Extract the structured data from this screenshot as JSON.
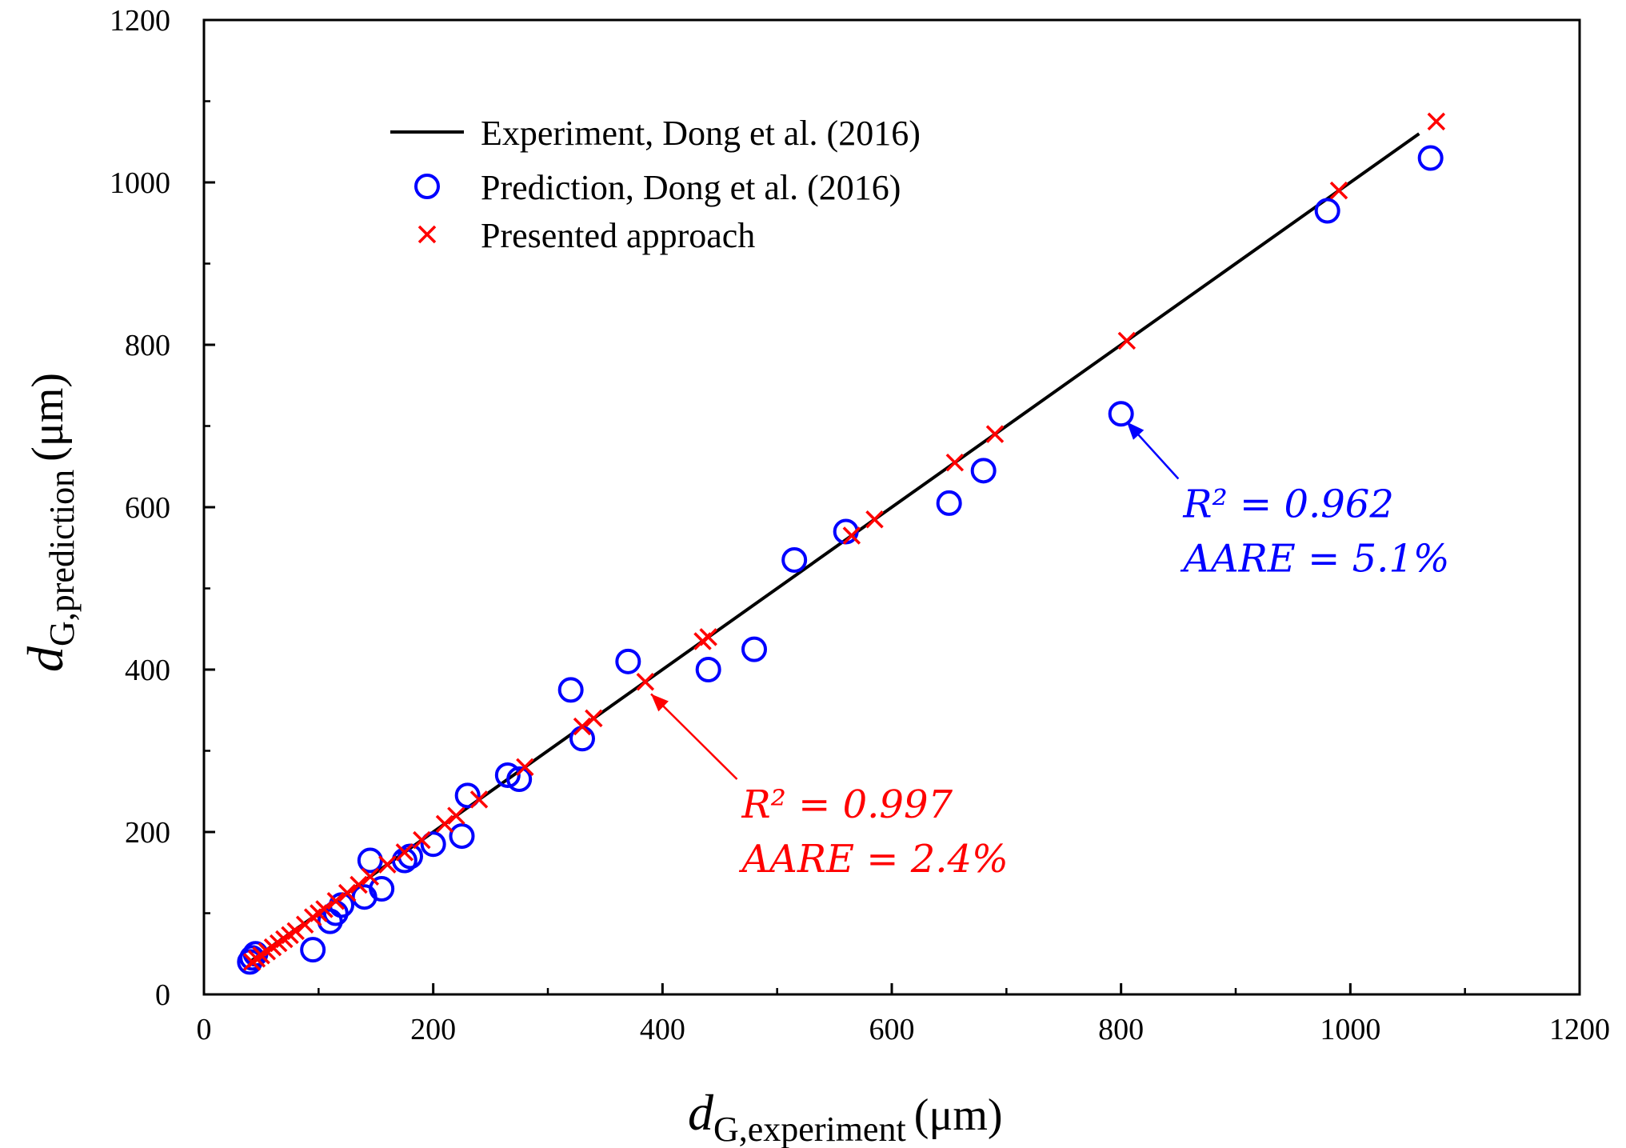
{
  "chart_data": {
    "type": "scatter",
    "title": "",
    "xlabel": {
      "main": "d",
      "sub": "G,experiment",
      "unit": "(μm)"
    },
    "ylabel": {
      "main": "d",
      "sub": "G,prediction",
      "unit": "(μm)"
    },
    "xlim": [
      0,
      1200
    ],
    "ylim": [
      0,
      1200
    ],
    "xticks": [
      0,
      200,
      400,
      600,
      800,
      1000,
      1200
    ],
    "yticks": [
      0,
      200,
      400,
      600,
      800,
      1000,
      1200
    ],
    "legend_position": "top-left",
    "series": [
      {
        "name": "Experiment,  Dong et al. (2016)",
        "kind": "line",
        "color": "#000000",
        "x": [
          40,
          1060
        ],
        "y": [
          40,
          1060
        ]
      },
      {
        "name": "Prediction, Dong et al. (2016)",
        "kind": "open-circle",
        "color": "#0000ff",
        "x": [
          40,
          42,
          45,
          95,
          110,
          115,
          120,
          140,
          145,
          155,
          175,
          180,
          200,
          225,
          230,
          265,
          275,
          320,
          330,
          370,
          440,
          480,
          515,
          560,
          650,
          680,
          800,
          980,
          1070
        ],
        "y": [
          40,
          45,
          50,
          55,
          90,
          100,
          110,
          120,
          165,
          130,
          165,
          170,
          185,
          195,
          245,
          270,
          265,
          375,
          315,
          410,
          400,
          425,
          535,
          570,
          605,
          645,
          715,
          965,
          1030
        ]
      },
      {
        "name": "Presented approach",
        "kind": "x-marker",
        "color": "#ff0000",
        "x": [
          42,
          46,
          50,
          55,
          60,
          65,
          70,
          75,
          80,
          88,
          95,
          100,
          105,
          115,
          125,
          135,
          145,
          160,
          175,
          190,
          210,
          220,
          240,
          280,
          330,
          340,
          385,
          435,
          440,
          565,
          585,
          655,
          690,
          805,
          990,
          1075
        ],
        "y": [
          40,
          44,
          48,
          53,
          58,
          63,
          68,
          73,
          78,
          86,
          95,
          100,
          105,
          115,
          125,
          135,
          145,
          160,
          175,
          190,
          210,
          220,
          240,
          280,
          330,
          340,
          385,
          435,
          440,
          565,
          585,
          655,
          690,
          805,
          990,
          1075
        ]
      }
    ],
    "annotations": [
      {
        "series": "Prediction, Dong et al. (2016)",
        "line1": "R² = 0.962",
        "line2": "AARE = 5.1%",
        "color": "#0000ff",
        "arrow_from": [
          850,
          635
        ],
        "arrow_to": [
          805,
          705
        ]
      },
      {
        "series": "Presented approach",
        "line1": "R² = 0.997",
        "line2": "AARE = 2.4%",
        "color": "#ff0000",
        "arrow_from": [
          465,
          265
        ],
        "arrow_to": [
          390,
          370
        ]
      }
    ]
  }
}
